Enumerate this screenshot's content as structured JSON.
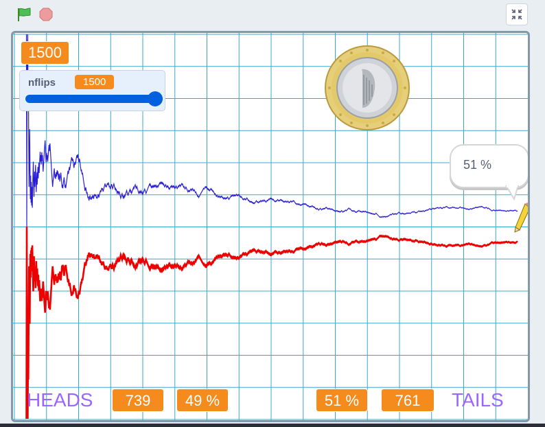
{
  "colors": {
    "heads_line": "#2a1fd6",
    "tails_line": "#ee0000",
    "grid": "#38a8d0",
    "monitor": "#f58b1c",
    "slider": "#0060dd",
    "label_purple": "#9966ff"
  },
  "toolbar": {
    "green_flag_icon": "green-flag-icon",
    "stop_icon": "stop-sign-icon",
    "fullscreen_icon": "exit-fullscreen-icon"
  },
  "stage": {
    "flips_monitor": "1500",
    "slider": {
      "label": "nflips",
      "value": "1500",
      "fraction": 1.0
    },
    "speech_bubble": "51 %",
    "heads_label": "HEADS",
    "heads_count": "739",
    "heads_percent": "49 %",
    "tails_percent": "51 %",
    "tails_count": "761",
    "tails_label": "TAILS"
  }
}
